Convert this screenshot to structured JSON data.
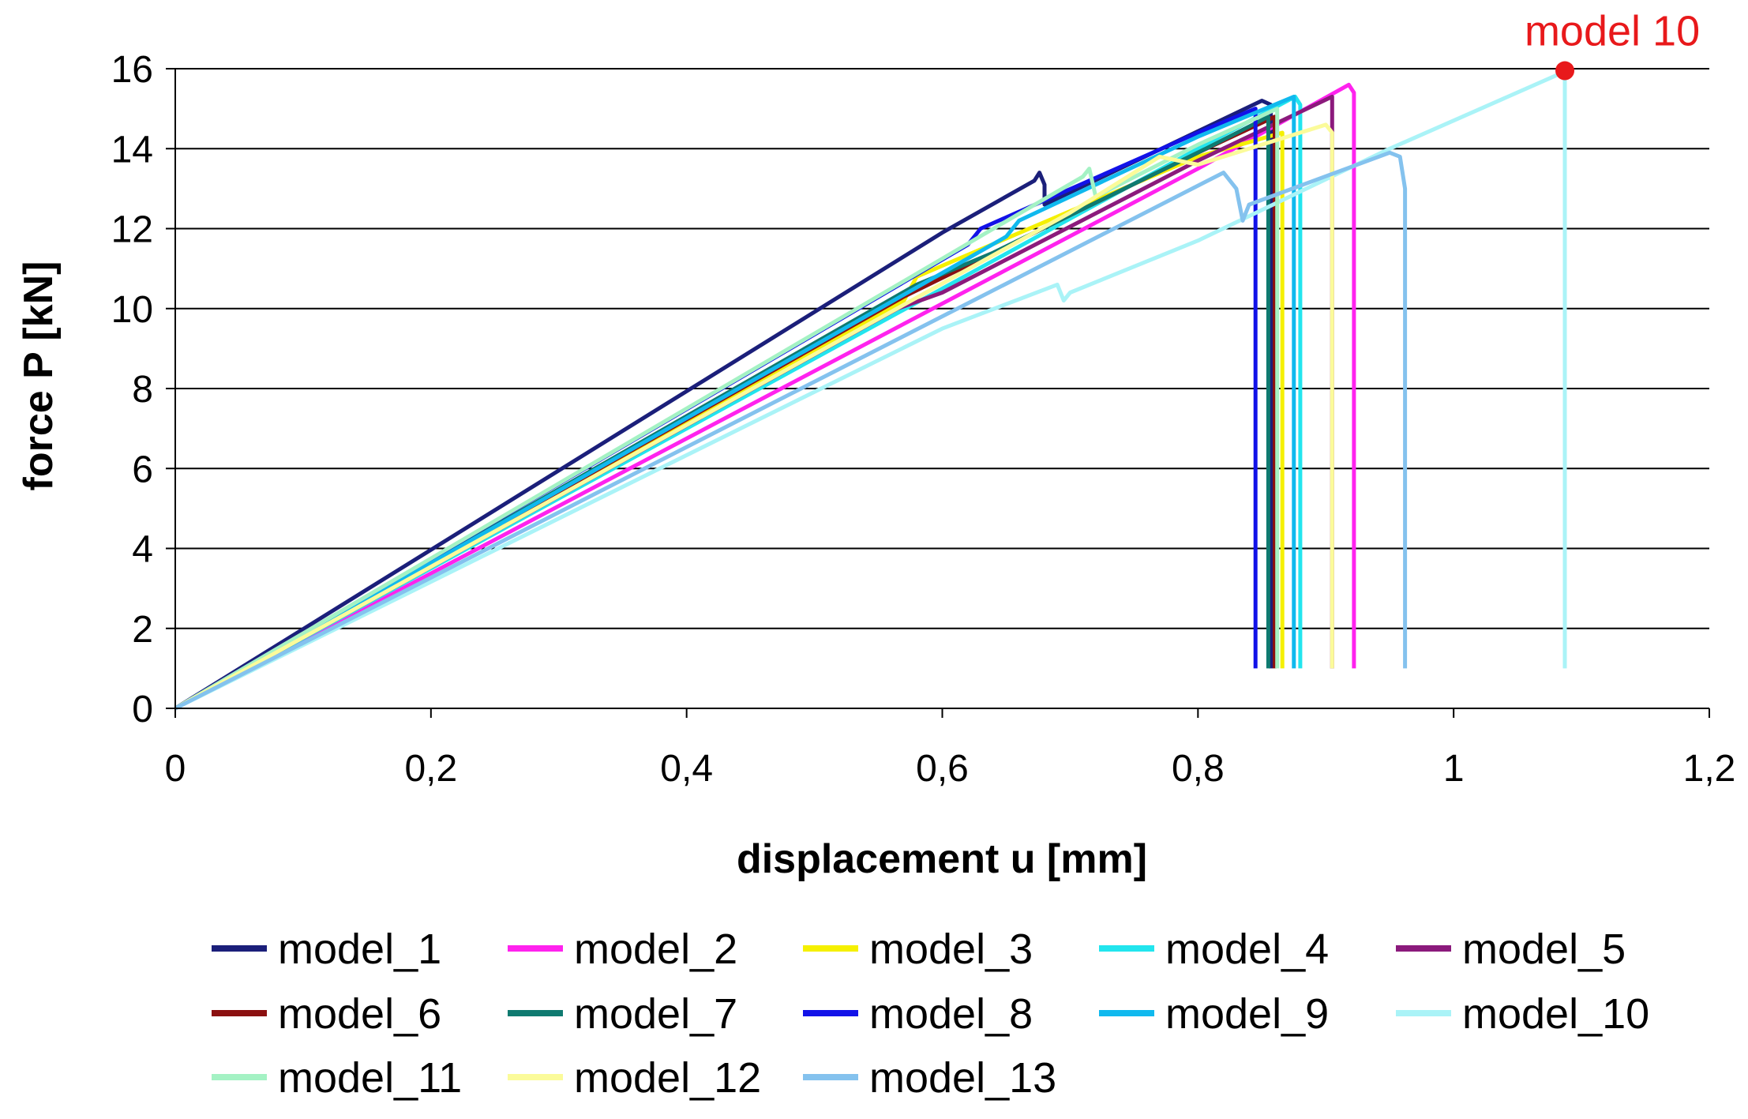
{
  "chart_data": {
    "type": "line",
    "title": "",
    "xlabel": "displacement u [mm]",
    "ylabel": "force P [kN]",
    "xlim": [
      0,
      1.2
    ],
    "ylim": [
      0,
      16
    ],
    "x_ticks": [
      "0",
      "0,2",
      "0,4",
      "0,6",
      "0,8",
      "1",
      "1,2"
    ],
    "y_ticks": [
      "0",
      "2",
      "4",
      "6",
      "8",
      "10",
      "12",
      "14",
      "16"
    ],
    "grid": "horizontal",
    "legend_position": "bottom",
    "annotation": {
      "text": "model 10",
      "x": 1.087,
      "y": 15.95,
      "color": "#e8191b"
    },
    "series": [
      {
        "name": "model_1",
        "color": "#1b1f7a",
        "x": [
          0,
          0.6,
          0.672,
          0.676,
          0.68,
          0.68,
          0.85,
          0.857,
          0.857
        ],
        "y": [
          0,
          11.9,
          13.2,
          13.4,
          13.1,
          12.6,
          15.2,
          15.1,
          1.0
        ]
      },
      {
        "name": "model_2",
        "color": "#ff22ee",
        "x": [
          0,
          0.8,
          0.918,
          0.922,
          0.922
        ],
        "y": [
          0,
          13.5,
          15.6,
          15.4,
          1.0
        ]
      },
      {
        "name": "model_3",
        "color": "#f5f000",
        "x": [
          0,
          0.57,
          0.58,
          0.8,
          0.866,
          0.866
        ],
        "y": [
          0,
          10.2,
          10.8,
          13.8,
          14.4,
          1.0
        ]
      },
      {
        "name": "model_4",
        "color": "#22e5ee",
        "x": [
          0,
          0.8,
          0.876,
          0.88,
          0.88
        ],
        "y": [
          0,
          14.0,
          15.3,
          15.1,
          1.0
        ]
      },
      {
        "name": "model_5",
        "color": "#8b1a7c",
        "x": [
          0,
          0.565,
          0.6,
          0.8,
          0.905,
          0.905
        ],
        "y": [
          0,
          10.0,
          10.4,
          13.7,
          15.3,
          1.0
        ]
      },
      {
        "name": "model_6",
        "color": "#8b1010",
        "x": [
          0,
          0.57,
          0.8,
          0.86,
          0.86
        ],
        "y": [
          0,
          10.3,
          13.9,
          14.8,
          1.0
        ]
      },
      {
        "name": "model_7",
        "color": "#0f7a70",
        "x": [
          0,
          0.58,
          0.64,
          0.8,
          0.855,
          0.855
        ],
        "y": [
          0,
          10.6,
          11.4,
          13.9,
          14.8,
          1.0
        ]
      },
      {
        "name": "model_8",
        "color": "#1212e8",
        "x": [
          0,
          0.62,
          0.63,
          0.8,
          0.845,
          0.845
        ],
        "y": [
          0,
          11.6,
          12.0,
          14.4,
          15.0,
          1.0
        ]
      },
      {
        "name": "model_9",
        "color": "#10b9ee",
        "x": [
          0,
          0.65,
          0.66,
          0.8,
          0.875,
          0.875
        ],
        "y": [
          0,
          11.8,
          12.2,
          14.3,
          15.3,
          1.0
        ]
      },
      {
        "name": "model_10",
        "color": "#aaf3f7",
        "x": [
          0,
          0.6,
          0.69,
          0.695,
          0.7,
          0.8,
          0.95,
          1.085,
          1.087,
          1.087
        ],
        "y": [
          0,
          9.5,
          10.6,
          10.2,
          10.4,
          11.7,
          14.0,
          15.9,
          15.7,
          1.0
        ]
      },
      {
        "name": "model_11",
        "color": "#a4f2c4",
        "x": [
          0,
          0.64,
          0.71,
          0.715,
          0.72,
          0.8,
          0.862,
          0.862
        ],
        "y": [
          0,
          12.0,
          13.3,
          13.5,
          12.8,
          14.1,
          15.0,
          1.0
        ]
      },
      {
        "name": "model_12",
        "color": "#fbfb9a",
        "x": [
          0,
          0.7,
          0.77,
          0.8,
          0.9,
          0.905,
          0.905
        ],
        "y": [
          0,
          12.4,
          13.8,
          13.6,
          14.6,
          14.4,
          1.0
        ]
      },
      {
        "name": "model_13",
        "color": "#84c2ee",
        "x": [
          0,
          0.82,
          0.83,
          0.835,
          0.84,
          0.95,
          0.958,
          0.962,
          0.962
        ],
        "y": [
          0,
          13.4,
          13.0,
          12.2,
          12.6,
          13.9,
          13.8,
          13.0,
          1.0
        ]
      }
    ]
  }
}
